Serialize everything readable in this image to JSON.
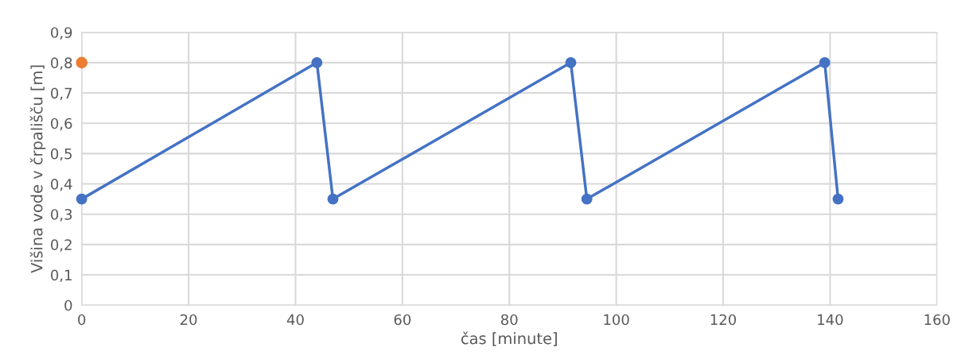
{
  "chart_data": {
    "type": "line",
    "xlabel": "čas [minute]",
    "ylabel": "Višina vode v črpališču [m]",
    "series": [
      {
        "color": "#4472c4",
        "x": [
          0,
          44,
          47,
          91.5,
          94.5,
          139,
          141.5
        ],
        "values": [
          0.35,
          0.8,
          0.35,
          0.8,
          0.35,
          0.8,
          0.35
        ]
      },
      {
        "type": "scatter",
        "color": "#ed7d31",
        "x": [
          0
        ],
        "values": [
          0.8
        ]
      }
    ],
    "xlim": [
      0,
      160
    ],
    "xticks": [
      0,
      20,
      40,
      60,
      80,
      100,
      120,
      140,
      160
    ],
    "ylim": [
      0,
      0.9
    ],
    "yticks": [
      0,
      {
        "value": 0.1,
        "label": "0,1"
      },
      {
        "value": 0.2,
        "label": "0,2"
      },
      {
        "value": 0.3,
        "label": "0,3"
      },
      {
        "value": 0.4,
        "label": "0,4"
      },
      {
        "value": 0.5,
        "label": "0,5"
      },
      {
        "value": 0.6,
        "label": "0,6"
      },
      {
        "value": 0.7,
        "label": "0,7"
      },
      {
        "value": 0.8,
        "label": "0,8"
      },
      {
        "value": 0.9,
        "label": "0,9"
      }
    ],
    "grid": true,
    "marker": "circle",
    "line_style": "solid",
    "legend": false
  }
}
